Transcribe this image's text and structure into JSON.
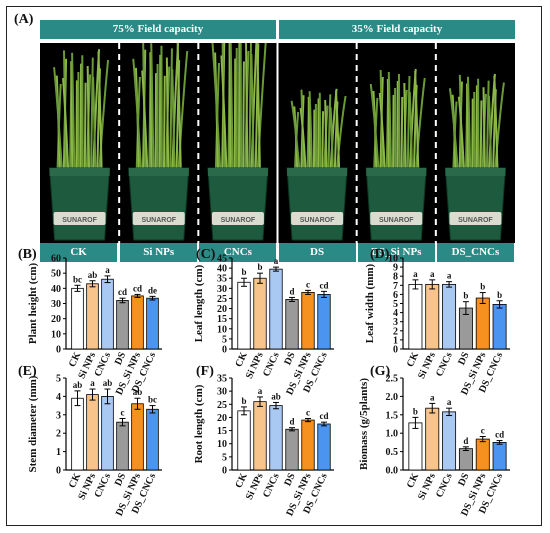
{
  "figure": {
    "panel_labels": [
      "(A)",
      "(B)",
      "(C)",
      "(D)",
      "(E)",
      "(F)",
      "(G)"
    ],
    "photo": {
      "headers": [
        "75% Field capacity",
        "35% Field capacity"
      ],
      "treatments": [
        "CK",
        "Si NPs",
        "CNCs",
        "DS",
        "DS_Si NPs",
        "DS_CNCs"
      ],
      "pot_text": "SUNAROF"
    }
  },
  "colors": {
    "header_teal": "#2a8a86",
    "bars": [
      "#ffffff",
      "#f9c48c",
      "#a9c9f2",
      "#9a9a9a",
      "#f6901e",
      "#4b95f0"
    ],
    "photo_bg": "#000000",
    "pot_green": "#1d5a3e"
  },
  "chart_data": [
    {
      "type": "bar",
      "panel": "(B)",
      "ylabel": "Plant height (cm)",
      "categories": [
        "CK",
        "Si NPs",
        "CNCs",
        "DS",
        "DS_Si NPs",
        "DS_CNCs"
      ],
      "values": [
        40,
        43,
        46,
        32,
        35,
        33.5
      ],
      "errors": [
        2,
        2,
        2.2,
        1.5,
        1,
        1.2
      ],
      "letters": [
        "bc",
        "ab",
        "a",
        "cd",
        "cd",
        "de"
      ],
      "ylim": [
        0,
        60
      ],
      "yticks": [
        "0",
        "10",
        "20",
        "30",
        "40",
        "50",
        "60"
      ]
    },
    {
      "type": "bar",
      "panel": "(C)",
      "ylabel": "Leaf length (cm)",
      "categories": [
        "CK",
        "Si NPs",
        "CNCs",
        "DS",
        "DS_Si NPs",
        "DS_CNCs"
      ],
      "values": [
        33,
        35,
        39.5,
        24.5,
        28,
        27
      ],
      "errors": [
        2,
        2.5,
        1,
        1,
        1,
        1.5
      ],
      "letters": [
        "b",
        "b",
        "a",
        "d",
        "c",
        "cd"
      ],
      "ylim": [
        0,
        45
      ],
      "yticks": [
        "0",
        "5",
        "10",
        "15",
        "20",
        "25",
        "30",
        "35",
        "40",
        "45"
      ]
    },
    {
      "type": "bar",
      "panel": "(D)",
      "ylabel": "Leaf width (mm)",
      "categories": [
        "CK",
        "Si NPs",
        "CNCs",
        "DS",
        "DS_Si NPs",
        "DS_CNCs"
      ],
      "values": [
        7.1,
        7.1,
        7.1,
        4.5,
        5.6,
        4.9
      ],
      "errors": [
        0.5,
        0.5,
        0.3,
        0.7,
        0.6,
        0.4
      ],
      "letters": [
        "a",
        "a",
        "a",
        "b",
        "b",
        "b"
      ],
      "ylim": [
        0,
        10
      ],
      "yticks": [
        "0",
        "1",
        "2",
        "3",
        "4",
        "5",
        "6",
        "7",
        "8",
        "9",
        "10"
      ]
    },
    {
      "type": "bar",
      "panel": "(E)",
      "ylabel": "Stem diameter (mm)",
      "categories": [
        "CK",
        "Si NPs",
        "CNCs",
        "DS",
        "DS_Si NPs",
        "DS_CNCs"
      ],
      "values": [
        3.9,
        4.1,
        4.0,
        2.6,
        3.6,
        3.3
      ],
      "errors": [
        0.4,
        0.3,
        0.4,
        0.2,
        0.3,
        0.2
      ],
      "letters": [
        "ab",
        "a",
        "ab",
        "c",
        "ab",
        "bc"
      ],
      "ylim": [
        0,
        5
      ],
      "yticks": [
        "0",
        "1",
        "2",
        "3",
        "4",
        "5"
      ]
    },
    {
      "type": "bar",
      "panel": "(F)",
      "ylabel": "Root length (cm)",
      "categories": [
        "CK",
        "Si NPs",
        "CNCs",
        "DS",
        "DS_Si NPs",
        "DS_CNCs"
      ],
      "values": [
        22.5,
        26,
        24.5,
        15.5,
        19,
        17.5
      ],
      "errors": [
        1.5,
        1.8,
        1.2,
        0.6,
        0.6,
        0.7
      ],
      "letters": [
        "b",
        "a",
        "ab",
        "d",
        "c",
        "cd"
      ],
      "ylim": [
        0,
        35
      ],
      "yticks": [
        "0",
        "5",
        "10",
        "15",
        "20",
        "25",
        "30",
        "35"
      ]
    },
    {
      "type": "bar",
      "panel": "(G)",
      "ylabel": "Biomass (g/5plants)",
      "categories": [
        "CK",
        "Si NPs",
        "CNCs",
        "DS",
        "DS_Si NPs",
        "DS_CNCs"
      ],
      "values": [
        1.28,
        1.68,
        1.58,
        0.58,
        0.84,
        0.75
      ],
      "errors": [
        0.15,
        0.13,
        0.1,
        0.05,
        0.07,
        0.05
      ],
      "letters": [
        "b",
        "a",
        "a",
        "d",
        "c",
        "cd"
      ],
      "ylim": [
        0,
        2.5
      ],
      "yticks": [
        "0.0",
        "0.5",
        "1.0",
        "1.5",
        "2.0",
        "2.5"
      ]
    }
  ]
}
